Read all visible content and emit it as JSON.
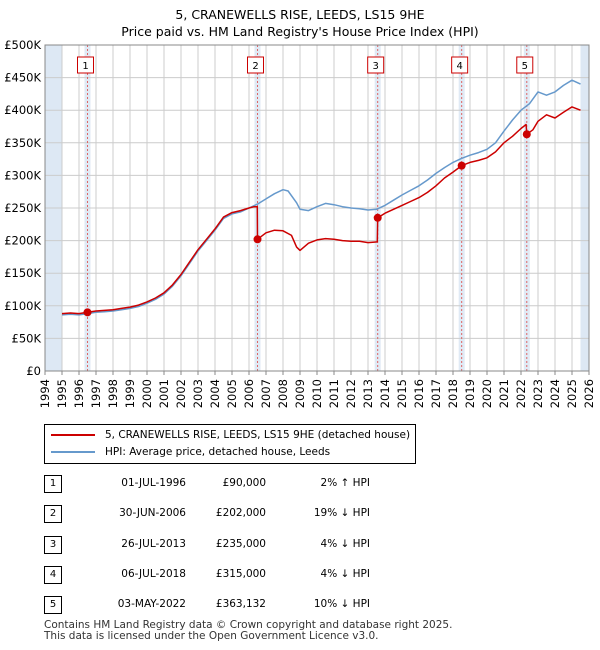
{
  "chart_data": {
    "type": "line",
    "title": "5, CRANEWELLS RISE, LEEDS, LS15 9HE",
    "subtitle": "Price paid vs. HM Land Registry's House Price Index (HPI)",
    "xlim": [
      1994,
      2026
    ],
    "ylim": [
      0,
      500000
    ],
    "y_ticks": [
      {
        "value": 0,
        "label": "£0"
      },
      {
        "value": 50000,
        "label": "£50K"
      },
      {
        "value": 100000,
        "label": "£100K"
      },
      {
        "value": 150000,
        "label": "£150K"
      },
      {
        "value": 200000,
        "label": "£200K"
      },
      {
        "value": 250000,
        "label": "£250K"
      },
      {
        "value": 300000,
        "label": "£300K"
      },
      {
        "value": 350000,
        "label": "£350K"
      },
      {
        "value": 400000,
        "label": "£400K"
      },
      {
        "value": 450000,
        "label": "£450K"
      },
      {
        "value": 500000,
        "label": "£500K"
      }
    ],
    "x_ticks": [
      "1994",
      "1995",
      "1996",
      "1997",
      "1998",
      "1999",
      "2000",
      "2001",
      "2002",
      "2003",
      "2004",
      "2005",
      "2006",
      "2007",
      "2008",
      "2009",
      "2010",
      "2011",
      "2012",
      "2013",
      "2014",
      "2015",
      "2016",
      "2017",
      "2018",
      "2019",
      "2020",
      "2021",
      "2022",
      "2023",
      "2024",
      "2025",
      "2026"
    ],
    "data_start": 1995.0,
    "data_end": 2025.5,
    "series": [
      {
        "name": "5, CRANEWELLS RISE, LEEDS, LS15 9HE (detached house)",
        "color": "#cc0000",
        "points": [
          [
            1995.0,
            88000
          ],
          [
            1995.5,
            89000
          ],
          [
            1996.0,
            88000
          ],
          [
            1996.5,
            90000
          ],
          [
            1997.0,
            92000
          ],
          [
            1997.5,
            93000
          ],
          [
            1998.0,
            94000
          ],
          [
            1998.5,
            96000
          ],
          [
            1999.0,
            98000
          ],
          [
            1999.5,
            101000
          ],
          [
            2000.0,
            106000
          ],
          [
            2000.5,
            112000
          ],
          [
            2001.0,
            120000
          ],
          [
            2001.5,
            132000
          ],
          [
            2002.0,
            148000
          ],
          [
            2002.5,
            167000
          ],
          [
            2003.0,
            186000
          ],
          [
            2003.5,
            202000
          ],
          [
            2004.0,
            218000
          ],
          [
            2004.5,
            236000
          ],
          [
            2005.0,
            243000
          ],
          [
            2005.5,
            246000
          ],
          [
            2006.0,
            250000
          ],
          [
            2006.3,
            252000
          ],
          [
            2006.49,
            252000
          ],
          [
            2006.5,
            202000
          ],
          [
            2007.0,
            212000
          ],
          [
            2007.5,
            216000
          ],
          [
            2008.0,
            215000
          ],
          [
            2008.5,
            208000
          ],
          [
            2008.8,
            190000
          ],
          [
            2009.0,
            185000
          ],
          [
            2009.5,
            196000
          ],
          [
            2010.0,
            201000
          ],
          [
            2010.5,
            203000
          ],
          [
            2011.0,
            202000
          ],
          [
            2011.5,
            200000
          ],
          [
            2012.0,
            199000
          ],
          [
            2012.5,
            199000
          ],
          [
            2013.0,
            197000
          ],
          [
            2013.55,
            198000
          ],
          [
            2013.57,
            235000
          ],
          [
            2014.0,
            242000
          ],
          [
            2014.5,
            248000
          ],
          [
            2015.0,
            254000
          ],
          [
            2015.5,
            260000
          ],
          [
            2016.0,
            266000
          ],
          [
            2016.5,
            274000
          ],
          [
            2017.0,
            284000
          ],
          [
            2017.5,
            296000
          ],
          [
            2018.0,
            305000
          ],
          [
            2018.51,
            315000
          ],
          [
            2019.0,
            320000
          ],
          [
            2019.5,
            323000
          ],
          [
            2020.0,
            327000
          ],
          [
            2020.5,
            336000
          ],
          [
            2021.0,
            350000
          ],
          [
            2021.5,
            360000
          ],
          [
            2022.0,
            372000
          ],
          [
            2022.3,
            378000
          ],
          [
            2022.34,
            363132
          ],
          [
            2022.7,
            370000
          ],
          [
            2023.0,
            383000
          ],
          [
            2023.5,
            393000
          ],
          [
            2024.0,
            388000
          ],
          [
            2024.5,
            397000
          ],
          [
            2025.0,
            405000
          ],
          [
            2025.5,
            400000
          ]
        ]
      },
      {
        "name": "HPI: Average price, detached house, Leeds",
        "color": "#6699cc",
        "points": [
          [
            1995.0,
            86000
          ],
          [
            1995.5,
            87000
          ],
          [
            1996.0,
            86000
          ],
          [
            1996.5,
            88000
          ],
          [
            1997.0,
            90000
          ],
          [
            1997.5,
            91000
          ],
          [
            1998.0,
            92000
          ],
          [
            1998.5,
            94000
          ],
          [
            1999.0,
            96000
          ],
          [
            1999.5,
            99000
          ],
          [
            2000.0,
            104000
          ],
          [
            2000.5,
            110000
          ],
          [
            2001.0,
            118000
          ],
          [
            2001.5,
            130000
          ],
          [
            2002.0,
            146000
          ],
          [
            2002.5,
            165000
          ],
          [
            2003.0,
            184000
          ],
          [
            2003.5,
            200000
          ],
          [
            2004.0,
            216000
          ],
          [
            2004.5,
            234000
          ],
          [
            2005.0,
            241000
          ],
          [
            2005.5,
            244000
          ],
          [
            2006.0,
            250000
          ],
          [
            2006.5,
            256000
          ],
          [
            2007.0,
            264000
          ],
          [
            2007.5,
            272000
          ],
          [
            2008.0,
            278000
          ],
          [
            2008.3,
            276000
          ],
          [
            2008.8,
            258000
          ],
          [
            2009.0,
            248000
          ],
          [
            2009.5,
            246000
          ],
          [
            2010.0,
            252000
          ],
          [
            2010.5,
            257000
          ],
          [
            2011.0,
            255000
          ],
          [
            2011.5,
            252000
          ],
          [
            2012.0,
            250000
          ],
          [
            2012.5,
            249000
          ],
          [
            2013.0,
            247000
          ],
          [
            2013.5,
            248000
          ],
          [
            2014.0,
            254000
          ],
          [
            2014.5,
            262000
          ],
          [
            2015.0,
            270000
          ],
          [
            2015.5,
            277000
          ],
          [
            2016.0,
            284000
          ],
          [
            2016.5,
            293000
          ],
          [
            2017.0,
            303000
          ],
          [
            2017.5,
            312000
          ],
          [
            2018.0,
            320000
          ],
          [
            2018.5,
            326000
          ],
          [
            2019.0,
            331000
          ],
          [
            2019.5,
            335000
          ],
          [
            2020.0,
            340000
          ],
          [
            2020.5,
            350000
          ],
          [
            2021.0,
            368000
          ],
          [
            2021.5,
            385000
          ],
          [
            2022.0,
            400000
          ],
          [
            2022.5,
            410000
          ],
          [
            2023.0,
            428000
          ],
          [
            2023.5,
            423000
          ],
          [
            2024.0,
            428000
          ],
          [
            2024.5,
            438000
          ],
          [
            2025.0,
            446000
          ],
          [
            2025.5,
            440000
          ]
        ]
      }
    ],
    "sales": [
      {
        "id": "1",
        "x": 1996.5,
        "price": 90000
      },
      {
        "id": "2",
        "x": 2006.5,
        "price": 202000
      },
      {
        "id": "3",
        "x": 2013.57,
        "price": 235000
      },
      {
        "id": "4",
        "x": 2018.51,
        "price": 315000
      },
      {
        "id": "5",
        "x": 2022.34,
        "price": 363132
      }
    ],
    "legend_position": "below"
  },
  "legend": {
    "property": "5, CRANEWELLS RISE, LEEDS, LS15 9HE (detached house)",
    "hpi": "HPI: Average price, detached house, Leeds"
  },
  "sales_table": [
    {
      "num": "1",
      "date": "01-JUL-1996",
      "price": "£90,000",
      "diff": "2% ↑ HPI"
    },
    {
      "num": "2",
      "date": "30-JUN-2006",
      "price": "£202,000",
      "diff": "19% ↓ HPI"
    },
    {
      "num": "3",
      "date": "26-JUL-2013",
      "price": "£235,000",
      "diff": "4% ↓ HPI"
    },
    {
      "num": "4",
      "date": "06-JUL-2018",
      "price": "£315,000",
      "diff": "4% ↓ HPI"
    },
    {
      "num": "5",
      "date": "03-MAY-2022",
      "price": "£363,132",
      "diff": "10% ↓ HPI"
    }
  ],
  "footer": {
    "line1": "Contains HM Land Registry data © Crown copyright and database right 2025.",
    "line2": "This data is licensed under the Open Government Licence v3.0."
  },
  "colors": {
    "property_line": "#cc0000",
    "hpi_line": "#6699cc",
    "shade": "#dde8f4",
    "marker_line": "#dd6666",
    "grid": "#cccccc"
  }
}
